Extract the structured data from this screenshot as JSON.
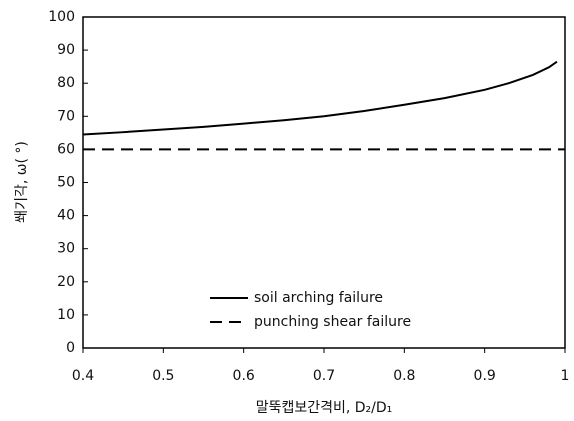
{
  "chart_data": {
    "type": "line",
    "xlabel": "말뚝캡보간격비, D₂/D₁",
    "ylabel": "쐐기각, ω( °)",
    "xlim": [
      0.4,
      1
    ],
    "xticks": [
      0.4,
      0.5,
      0.6,
      0.7,
      0.8,
      0.9,
      1
    ],
    "ylim": [
      0,
      100
    ],
    "yticks": [
      0,
      10,
      20,
      30,
      40,
      50,
      60,
      70,
      80,
      90,
      100
    ],
    "grid": false,
    "legend": "lower left",
    "series": [
      {
        "name": "soil arching failure",
        "color": "#000000",
        "dash": false,
        "x": [
          0.4,
          0.45,
          0.5,
          0.55,
          0.6,
          0.65,
          0.7,
          0.75,
          0.8,
          0.85,
          0.9,
          0.93,
          0.96,
          0.98,
          0.99
        ],
        "values": [
          64.5,
          65.2,
          66,
          66.8,
          67.8,
          68.8,
          70,
          71.6,
          73.5,
          75.5,
          78,
          80,
          82.5,
          84.8,
          86.5
        ]
      },
      {
        "name": "punching shear failure",
        "color": "#000000",
        "dash": true,
        "x": [
          0.4,
          1
        ],
        "values": [
          60,
          60
        ]
      }
    ]
  }
}
